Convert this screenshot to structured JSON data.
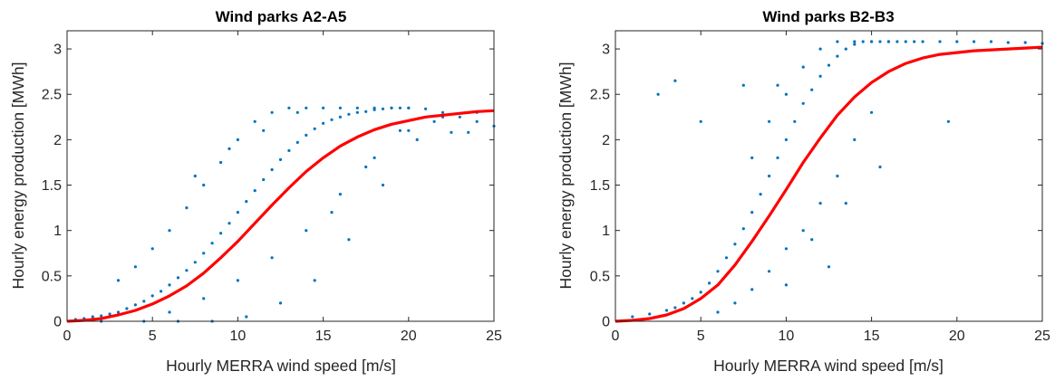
{
  "chart_data": [
    {
      "type": "scatter",
      "title": "Wind parks A2-A5",
      "xlabel": "Hourly MERRA wind speed [m/s]",
      "ylabel": "Hourly energy production [MWh]",
      "xlim": [
        0,
        25
      ],
      "ylim": [
        0,
        3.2
      ],
      "xticks": [
        0,
        5,
        10,
        15,
        20,
        25
      ],
      "yticks": [
        0,
        0.5,
        1,
        1.5,
        2,
        2.5,
        3
      ],
      "xtick_labels": [
        "0",
        "5",
        "10",
        "15",
        "20",
        "25"
      ],
      "ytick_labels": [
        "0",
        "0.5",
        "1",
        "1.5",
        "2",
        "2.5",
        "3"
      ],
      "grid": false,
      "point_color": "#0072BD",
      "fit_color": "#FF0000",
      "fit_curve": {
        "x": [
          0,
          1,
          2,
          3,
          4,
          5,
          6,
          7,
          8,
          9,
          10,
          11,
          12,
          13,
          14,
          15,
          16,
          17,
          18,
          19,
          20,
          21,
          22,
          23,
          24,
          25
        ],
        "y": [
          0,
          0.01,
          0.03,
          0.07,
          0.12,
          0.19,
          0.28,
          0.39,
          0.53,
          0.7,
          0.88,
          1.08,
          1.28,
          1.47,
          1.65,
          1.8,
          1.93,
          2.03,
          2.11,
          2.17,
          2.21,
          2.25,
          2.27,
          2.29,
          2.31,
          2.32
        ]
      },
      "points": {
        "x": [
          0.5,
          1.0,
          1.5,
          2.0,
          2.5,
          3.0,
          3.5,
          4.0,
          4.5,
          5.0,
          5.5,
          6.0,
          6.5,
          7.0,
          7.5,
          8.0,
          8.5,
          9.0,
          9.5,
          10.0,
          10.5,
          11.0,
          11.5,
          12.0,
          12.5,
          13.0,
          13.5,
          14.0,
          14.5,
          15.0,
          15.5,
          16.0,
          16.5,
          17.0,
          17.5,
          18.0,
          18.5,
          19.0,
          19.5,
          20.0,
          21.0,
          22.0,
          23.0,
          24.0,
          25.0,
          3.0,
          4.0,
          5.0,
          6.0,
          7.0,
          8.0,
          9.0,
          10.0,
          11.0,
          12.0,
          13.0,
          14.0,
          15.0,
          16.0,
          17.0,
          18.0,
          19.0,
          20.0,
          2.0,
          4.5,
          6.5,
          8.5,
          10.5,
          12.5,
          14.5,
          16.5,
          18.5,
          20.5,
          7.5,
          9.5,
          11.5,
          13.5,
          15.5,
          17.5,
          19.5,
          21.5,
          22.5,
          23.5,
          6.0,
          8.0,
          10.0,
          12.0,
          14.0,
          16.0,
          18.0,
          20.0,
          22.0,
          24.0
        ],
        "y": [
          0.02,
          0.03,
          0.05,
          0.06,
          0.08,
          0.1,
          0.14,
          0.18,
          0.22,
          0.28,
          0.33,
          0.4,
          0.48,
          0.56,
          0.65,
          0.75,
          0.86,
          0.97,
          1.08,
          1.2,
          1.32,
          1.44,
          1.56,
          1.67,
          1.78,
          1.88,
          1.97,
          2.05,
          2.12,
          2.18,
          2.22,
          2.25,
          2.28,
          2.3,
          2.31,
          2.33,
          2.34,
          2.35,
          2.35,
          2.35,
          2.34,
          2.3,
          2.25,
          2.2,
          2.15,
          0.45,
          0.6,
          0.8,
          1.0,
          1.25,
          1.5,
          1.75,
          2.0,
          2.2,
          2.3,
          2.35,
          2.35,
          2.35,
          2.35,
          2.35,
          2.35,
          2.35,
          2.35,
          0.0,
          0.0,
          0.0,
          0.0,
          0.05,
          0.2,
          0.45,
          0.9,
          1.5,
          2.0,
          1.6,
          1.9,
          2.1,
          2.3,
          1.2,
          1.7,
          2.1,
          2.2,
          2.08,
          2.08,
          0.1,
          0.25,
          0.45,
          0.7,
          1.0,
          1.4,
          1.8,
          2.1,
          2.25,
          2.3
        ]
      }
    },
    {
      "type": "scatter",
      "title": "Wind parks B2-B3",
      "xlabel": "Hourly MERRA wind speed [m/s]",
      "ylabel": "Hourly energy production [MWh]",
      "xlim": [
        0,
        25
      ],
      "ylim": [
        0,
        3.2
      ],
      "xticks": [
        0,
        5,
        10,
        15,
        20,
        25
      ],
      "yticks": [
        0,
        0.5,
        1,
        1.5,
        2,
        2.5,
        3
      ],
      "xtick_labels": [
        "0",
        "5",
        "10",
        "15",
        "20",
        "25"
      ],
      "ytick_labels": [
        "0",
        "0.5",
        "1",
        "1.5",
        "2",
        "2.5",
        "3"
      ],
      "grid": false,
      "point_color": "#0072BD",
      "fit_color": "#FF0000",
      "fit_curve": {
        "x": [
          0,
          1,
          2,
          3,
          4,
          5,
          6,
          7,
          8,
          9,
          10,
          11,
          12,
          13,
          14,
          15,
          16,
          17,
          18,
          19,
          20,
          21,
          22,
          23,
          24,
          25
        ],
        "y": [
          0,
          0.01,
          0.03,
          0.07,
          0.14,
          0.25,
          0.4,
          0.62,
          0.88,
          1.16,
          1.45,
          1.75,
          2.02,
          2.27,
          2.47,
          2.63,
          2.75,
          2.84,
          2.9,
          2.94,
          2.96,
          2.98,
          2.99,
          3.0,
          3.01,
          3.02
        ]
      },
      "points": {
        "x": [
          1.0,
          2.0,
          3.0,
          3.5,
          4.0,
          4.5,
          5.0,
          5.5,
          6.0,
          6.5,
          7.0,
          7.5,
          8.0,
          8.5,
          9.0,
          9.5,
          10.0,
          10.5,
          11.0,
          11.5,
          12.0,
          12.5,
          13.0,
          13.5,
          14.0,
          14.5,
          15.0,
          15.5,
          16.0,
          16.5,
          17.0,
          17.5,
          18.0,
          19.0,
          20.0,
          21.0,
          22.0,
          23.0,
          24.0,
          25.0,
          6.0,
          7.0,
          8.0,
          9.0,
          10.0,
          11.0,
          12.0,
          13.0,
          14.0,
          15.0,
          9.0,
          10.0,
          11.0,
          12.0,
          13.0,
          14.0,
          15.0,
          16.0,
          8.0,
          9.5,
          11.5,
          13.5,
          15.5,
          2.5,
          5.0,
          7.5,
          10.0,
          12.5,
          3.5,
          19.5
        ],
        "y": [
          0.05,
          0.08,
          0.12,
          0.15,
          0.2,
          0.25,
          0.32,
          0.42,
          0.55,
          0.7,
          0.85,
          1.02,
          1.2,
          1.4,
          1.6,
          1.8,
          2.0,
          2.2,
          2.4,
          2.55,
          2.7,
          2.82,
          2.92,
          3.0,
          3.05,
          3.08,
          3.08,
          3.08,
          3.08,
          3.08,
          3.08,
          3.08,
          3.08,
          3.08,
          3.08,
          3.08,
          3.08,
          3.07,
          3.07,
          3.06,
          0.1,
          0.2,
          0.35,
          0.55,
          0.8,
          1.0,
          1.3,
          1.6,
          2.0,
          2.3,
          2.2,
          2.5,
          2.8,
          3.0,
          3.08,
          3.08,
          3.08,
          3.08,
          1.8,
          2.6,
          0.9,
          1.3,
          1.7,
          2.5,
          2.2,
          2.6,
          0.4,
          0.6,
          2.65,
          2.2
        ]
      }
    }
  ]
}
